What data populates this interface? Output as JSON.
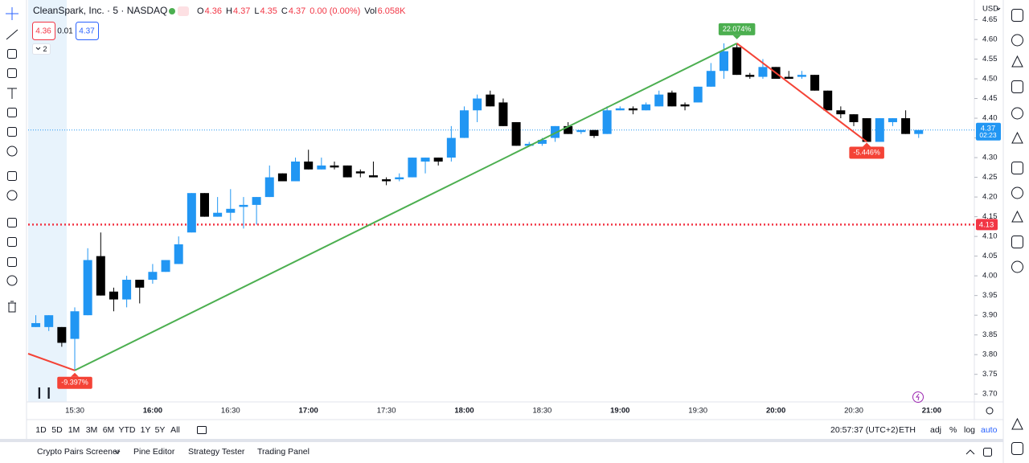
{
  "header": {
    "symbol": "CleanSpark, Inc. · 5 · NASDAQ",
    "ohlc": [
      {
        "key": "O",
        "value": "4.36"
      },
      {
        "key": "H",
        "value": "4.37"
      },
      {
        "key": "L",
        "value": "4.35"
      },
      {
        "key": "C",
        "value": "4.37"
      }
    ],
    "change": "0.00 (0.00%)",
    "vol_key": "Vol",
    "vol": "6.058K",
    "bid": "4.36",
    "spread": "0.01",
    "ask": "4.37",
    "indicators": "2",
    "currency": "USD"
  },
  "chart_data": {
    "type": "candlestick",
    "up_color": "#2196f3",
    "down_color": "#000000",
    "x": [
      "15:15",
      "15:20",
      "15:25",
      "15:30",
      "15:35",
      "15:40",
      "15:45",
      "15:50",
      "15:55",
      "16:00",
      "16:05",
      "16:10",
      "16:15",
      "16:20",
      "16:25",
      "16:30",
      "16:35",
      "16:40",
      "16:45",
      "16:50",
      "16:55",
      "17:00",
      "17:05",
      "17:10",
      "17:15",
      "17:20",
      "17:25",
      "17:30",
      "17:35",
      "17:40",
      "17:45",
      "17:50",
      "17:55",
      "18:00",
      "18:05",
      "18:10",
      "18:15",
      "18:20",
      "18:25",
      "18:30",
      "18:35",
      "18:40",
      "18:45",
      "18:50",
      "18:55",
      "19:00",
      "19:05",
      "19:10",
      "19:15",
      "19:20",
      "19:25",
      "19:30",
      "19:35",
      "19:40",
      "19:45",
      "19:50",
      "19:55",
      "20:00",
      "20:05",
      "20:10",
      "20:15",
      "20:20",
      "20:25",
      "20:30",
      "20:35",
      "20:40",
      "20:45",
      "20:50",
      "20:55"
    ],
    "open": [
      3.87,
      3.87,
      3.87,
      3.84,
      3.9,
      4.05,
      3.96,
      3.94,
      3.99,
      3.99,
      4.01,
      4.03,
      4.11,
      4.21,
      4.15,
      4.16,
      4.175,
      4.18,
      4.2,
      4.26,
      4.24,
      4.29,
      4.27,
      4.28,
      4.28,
      4.265,
      4.255,
      4.245,
      4.245,
      4.25,
      4.29,
      4.3,
      4.3,
      4.35,
      4.42,
      4.46,
      4.44,
      4.39,
      4.33,
      4.335,
      4.35,
      4.38,
      4.365,
      4.37,
      4.36,
      4.42,
      4.425,
      4.42,
      4.43,
      4.465,
      4.435,
      4.44,
      4.48,
      4.52,
      4.58,
      4.51,
      4.505,
      4.53,
      4.505,
      4.505,
      4.51,
      4.47,
      4.42,
      4.41,
      4.4,
      4.34,
      4.39,
      4.4,
      4.36
    ],
    "high": [
      3.9,
      3.9,
      3.87,
      3.92,
      4.07,
      4.11,
      3.97,
      4.0,
      3.99,
      4.03,
      4.04,
      4.1,
      4.21,
      4.21,
      4.2,
      4.22,
      4.2,
      4.2,
      4.28,
      4.26,
      4.3,
      4.32,
      4.3,
      4.29,
      4.28,
      4.27,
      4.29,
      4.25,
      4.26,
      4.3,
      4.3,
      4.3,
      4.38,
      4.43,
      4.46,
      4.47,
      4.45,
      4.39,
      4.34,
      4.35,
      4.38,
      4.39,
      4.37,
      4.37,
      4.43,
      4.43,
      4.43,
      4.44,
      4.47,
      4.47,
      4.44,
      4.48,
      4.54,
      4.59,
      4.59,
      4.515,
      4.55,
      4.53,
      4.52,
      4.52,
      4.51,
      4.47,
      4.43,
      4.41,
      4.4,
      4.4,
      4.4,
      4.42,
      4.37
    ],
    "low": [
      3.87,
      3.86,
      3.82,
      3.76,
      3.9,
      3.95,
      3.91,
      3.92,
      3.93,
      3.98,
      4.01,
      4.03,
      4.11,
      4.15,
      4.15,
      4.14,
      4.12,
      4.13,
      4.2,
      4.24,
      4.24,
      4.27,
      4.27,
      4.27,
      4.25,
      4.25,
      4.25,
      4.23,
      4.24,
      4.25,
      4.26,
      4.28,
      4.29,
      4.35,
      4.39,
      4.43,
      4.38,
      4.33,
      4.33,
      4.33,
      4.34,
      4.36,
      4.36,
      4.35,
      4.36,
      4.42,
      4.41,
      4.42,
      4.43,
      4.43,
      4.42,
      4.44,
      4.48,
      4.5,
      4.51,
      4.5,
      4.5,
      4.5,
      4.5,
      4.5,
      4.47,
      4.42,
      4.4,
      4.38,
      4.34,
      4.34,
      4.38,
      4.36,
      4.35
    ],
    "close": [
      3.88,
      3.9,
      3.83,
      3.91,
      4.04,
      3.95,
      3.94,
      3.99,
      3.97,
      4.01,
      4.04,
      4.08,
      4.21,
      4.15,
      4.16,
      4.17,
      4.18,
      4.2,
      4.25,
      4.24,
      4.29,
      4.27,
      4.28,
      4.275,
      4.25,
      4.26,
      4.25,
      4.24,
      4.25,
      4.3,
      4.3,
      4.29,
      4.35,
      4.42,
      4.45,
      4.43,
      4.38,
      4.33,
      4.335,
      4.345,
      4.38,
      4.36,
      4.37,
      4.355,
      4.42,
      4.425,
      4.42,
      4.435,
      4.46,
      4.43,
      4.43,
      4.48,
      4.52,
      4.57,
      4.51,
      4.505,
      4.53,
      4.5,
      4.5,
      4.51,
      4.47,
      4.42,
      4.41,
      4.39,
      4.34,
      4.4,
      4.4,
      4.36,
      4.37
    ],
    "xticks": [
      "15:30",
      "16:00",
      "16:30",
      "17:00",
      "17:30",
      "18:00",
      "18:30",
      "19:00",
      "19:30",
      "20:00",
      "20:30",
      "21:00"
    ],
    "ylim": [
      3.68,
      4.7
    ],
    "yticks": [
      4.65,
      {
        "value": 4.6,
        "label": "4.60"
      },
      4.55,
      {
        "value": 4.5,
        "label": "4.50"
      },
      4.45,
      {
        "value": 4.4,
        "label": "4.40"
      },
      4.35,
      {
        "value": 4.3,
        "label": "4.30"
      },
      4.25,
      {
        "value": 4.2,
        "label": "4.20"
      },
      4.15,
      {
        "value": 4.1,
        "label": "4.10"
      },
      4.05,
      {
        "value": 4,
        "label": "4.00"
      },
      3.95,
      {
        "value": 3.9,
        "label": "3.90"
      },
      3.85,
      {
        "value": 3.8,
        "label": "3.80"
      },
      3.75,
      {
        "value": 3.7,
        "label": "3.70"
      }
    ],
    "grid": false,
    "price_line": {
      "value": 4.37,
      "countdown": "02:23",
      "color": "#2196f3"
    },
    "alert_line": {
      "value": 4.13,
      "color": "#f23645"
    },
    "annotations": [
      {
        "label": "22.074%",
        "color": "#4caf50"
      },
      {
        "label": "-9.397%",
        "color": "#f44336"
      },
      {
        "label": "-5.446%",
        "color": "#f44336"
      }
    ]
  },
  "toolbar": {
    "ranges": [
      "1D",
      "5D",
      "1M",
      "3M",
      "6M",
      "YTD",
      "1Y",
      "5Y",
      "All"
    ],
    "clock": "20:57:37 (UTC+2)",
    "session": "ETH",
    "options": [
      "adj",
      "%",
      "log",
      "auto"
    ]
  },
  "bottom_panel": {
    "tabs": [
      "Crypto Pairs Screener",
      "Pine Editor",
      "Strategy Tester",
      "Trading Panel"
    ]
  }
}
